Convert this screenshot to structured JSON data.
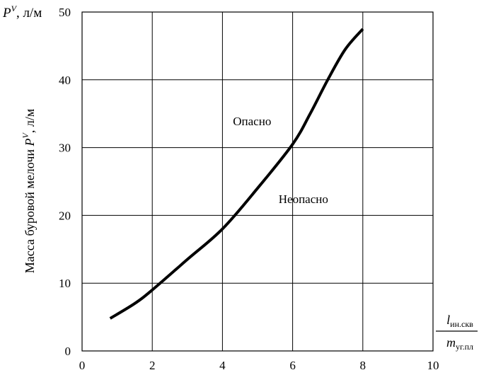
{
  "chart_data": {
    "type": "line",
    "title": "",
    "xlabel": {
      "numerator": {
        "base": "l",
        "subscript": "ин.скв"
      },
      "denominator": {
        "base": "m",
        "subscript": "уг.пл"
      }
    },
    "ylabel": {
      "text": "Масса буровой мелочи",
      "symbol": "P",
      "superscript": "V",
      "unit": ", л/м"
    },
    "ylabel_top": {
      "symbol": "P",
      "superscript": "V",
      "unit": ", л/м"
    },
    "xlim": [
      0,
      10
    ],
    "ylim": [
      0,
      50
    ],
    "xticks": [
      "0",
      "2",
      "4",
      "6",
      "8",
      "10"
    ],
    "yticks": [
      "0",
      "10",
      "20",
      "30",
      "40",
      "50"
    ],
    "grid": true,
    "series": [
      {
        "x": [
          0.8,
          1.5,
          2.0,
          3.0,
          4.0,
          5.0,
          6.0,
          6.5,
          7.0,
          7.5,
          8.0
        ],
        "y": [
          4.8,
          7.0,
          9.0,
          13.5,
          18.0,
          24.0,
          30.5,
          35.0,
          40.0,
          44.5,
          47.5
        ],
        "color": "#000000"
      }
    ],
    "annotations": [
      {
        "text": "Опасно",
        "x": 4.3,
        "y": 33.3
      },
      {
        "text": "Неопасно",
        "x": 5.6,
        "y": 21.8
      }
    ]
  }
}
